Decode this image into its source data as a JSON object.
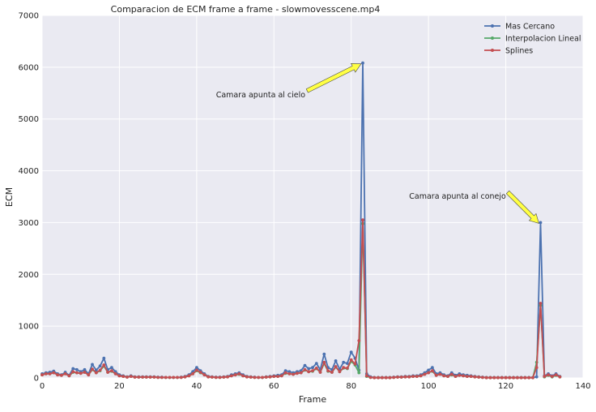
{
  "chart_data": {
    "type": "line",
    "title": "Comparacion de ECM frame a frame - slowmovesscene.mp4",
    "xlabel": "Frame",
    "ylabel": "ECM",
    "xlim": [
      0,
      140
    ],
    "ylim": [
      0,
      7000
    ],
    "x_ticks": [
      "0",
      "20",
      "40",
      "60",
      "80",
      "100",
      "120",
      "140"
    ],
    "y_ticks": [
      "0",
      "1000",
      "2000",
      "3000",
      "4000",
      "5000",
      "6000",
      "7000"
    ],
    "grid": true,
    "legend_position": "top-right",
    "background": "#eaeaf2",
    "series": [
      {
        "name": "Mas Cercano",
        "color": "#4c72b0",
        "x": [
          0,
          1,
          2,
          3,
          4,
          5,
          6,
          7,
          8,
          9,
          10,
          11,
          12,
          13,
          14,
          15,
          16,
          17,
          18,
          19,
          20,
          21,
          22,
          23,
          24,
          25,
          26,
          27,
          28,
          29,
          30,
          31,
          32,
          33,
          34,
          35,
          36,
          37,
          38,
          39,
          40,
          41,
          42,
          43,
          44,
          45,
          46,
          47,
          48,
          49,
          50,
          51,
          52,
          53,
          54,
          55,
          56,
          57,
          58,
          59,
          60,
          61,
          62,
          63,
          64,
          65,
          66,
          67,
          68,
          69,
          70,
          71,
          72,
          73,
          74,
          75,
          76,
          77,
          78,
          79,
          80,
          81,
          82,
          83,
          84,
          85,
          86,
          87,
          88,
          89,
          90,
          91,
          92,
          93,
          94,
          95,
          96,
          97,
          98,
          99,
          100,
          101,
          102,
          103,
          104,
          105,
          106,
          107,
          108,
          109,
          110,
          111,
          112,
          113,
          114,
          115,
          116,
          117,
          118,
          119,
          120,
          121,
          122,
          123,
          124,
          125,
          126,
          127,
          128,
          129,
          130,
          131,
          132,
          133,
          134
        ],
        "y": [
          80,
          100,
          110,
          130,
          80,
          60,
          110,
          50,
          180,
          160,
          120,
          160,
          80,
          260,
          150,
          230,
          380,
          160,
          200,
          120,
          60,
          40,
          20,
          40,
          20,
          20,
          20,
          20,
          20,
          20,
          15,
          15,
          10,
          10,
          10,
          10,
          15,
          30,
          60,
          120,
          200,
          140,
          80,
          30,
          20,
          15,
          15,
          20,
          30,
          60,
          80,
          100,
          60,
          30,
          20,
          15,
          10,
          10,
          20,
          30,
          40,
          50,
          60,
          140,
          120,
          100,
          120,
          140,
          240,
          180,
          200,
          280,
          160,
          460,
          200,
          160,
          330,
          170,
          300,
          280,
          500,
          380,
          150,
          6080,
          80,
          20,
          10,
          10,
          10,
          10,
          10,
          15,
          20,
          20,
          30,
          30,
          40,
          40,
          60,
          100,
          150,
          200,
          80,
          100,
          60,
          40,
          100,
          50,
          80,
          60,
          50,
          40,
          30,
          20,
          15,
          10,
          10,
          10,
          10,
          10,
          10,
          10,
          10,
          10,
          10,
          10,
          10,
          10,
          20,
          3000,
          40,
          80,
          40,
          80,
          30
        ]
      },
      {
        "name": "Interpolacion Lineal",
        "color": "#55a868",
        "x": [
          0,
          1,
          2,
          3,
          4,
          5,
          6,
          7,
          8,
          9,
          10,
          11,
          12,
          13,
          14,
          15,
          16,
          17,
          18,
          19,
          20,
          21,
          22,
          23,
          24,
          25,
          26,
          27,
          28,
          29,
          30,
          31,
          32,
          33,
          34,
          35,
          36,
          37,
          38,
          39,
          40,
          41,
          42,
          43,
          44,
          45,
          46,
          47,
          48,
          49,
          50,
          51,
          52,
          53,
          54,
          55,
          56,
          57,
          58,
          59,
          60,
          61,
          62,
          63,
          64,
          65,
          66,
          67,
          68,
          69,
          70,
          71,
          72,
          73,
          74,
          75,
          76,
          77,
          78,
          79,
          80,
          81,
          82,
          83,
          84,
          85,
          86,
          87,
          88,
          89,
          90,
          91,
          92,
          93,
          94,
          95,
          96,
          97,
          98,
          99,
          100,
          101,
          102,
          103,
          104,
          105,
          106,
          107,
          108,
          109,
          110,
          111,
          112,
          113,
          114,
          115,
          116,
          117,
          118,
          119,
          120,
          121,
          122,
          123,
          124,
          125,
          126,
          127,
          128,
          129,
          130,
          131,
          132,
          133,
          134
        ],
        "y": [
          60,
          80,
          80,
          100,
          60,
          50,
          80,
          40,
          110,
          100,
          90,
          110,
          60,
          160,
          100,
          140,
          230,
          110,
          130,
          80,
          40,
          30,
          15,
          30,
          15,
          15,
          15,
          15,
          15,
          15,
          10,
          10,
          10,
          10,
          10,
          10,
          10,
          20,
          40,
          80,
          140,
          100,
          60,
          20,
          15,
          10,
          10,
          15,
          20,
          40,
          60,
          70,
          40,
          20,
          15,
          10,
          10,
          10,
          15,
          20,
          30,
          30,
          40,
          90,
          80,
          70,
          90,
          100,
          150,
          120,
          130,
          180,
          110,
          280,
          130,
          110,
          210,
          120,
          190,
          180,
          320,
          250,
          100,
          2980,
          30,
          10,
          5,
          5,
          5,
          5,
          5,
          10,
          15,
          15,
          20,
          20,
          30,
          30,
          40,
          70,
          100,
          130,
          50,
          70,
          40,
          30,
          60,
          30,
          50,
          40,
          30,
          30,
          20,
          15,
          10,
          5,
          5,
          5,
          5,
          5,
          5,
          5,
          5,
          5,
          5,
          5,
          5,
          5,
          300,
          1400,
          20,
          50,
          20,
          50,
          20
        ]
      },
      {
        "name": "Splines",
        "color": "#c44e52",
        "x": [
          0,
          1,
          2,
          3,
          4,
          5,
          6,
          7,
          8,
          9,
          10,
          11,
          12,
          13,
          14,
          15,
          16,
          17,
          18,
          19,
          20,
          21,
          22,
          23,
          24,
          25,
          26,
          27,
          28,
          29,
          30,
          31,
          32,
          33,
          34,
          35,
          36,
          37,
          38,
          39,
          40,
          41,
          42,
          43,
          44,
          45,
          46,
          47,
          48,
          49,
          50,
          51,
          52,
          53,
          54,
          55,
          56,
          57,
          58,
          59,
          60,
          61,
          62,
          63,
          64,
          65,
          66,
          67,
          68,
          69,
          70,
          71,
          72,
          73,
          74,
          75,
          76,
          77,
          78,
          79,
          80,
          81,
          82,
          83,
          84,
          85,
          86,
          87,
          88,
          89,
          90,
          91,
          92,
          93,
          94,
          95,
          96,
          97,
          98,
          99,
          100,
          101,
          102,
          103,
          104,
          105,
          106,
          107,
          108,
          109,
          110,
          111,
          112,
          113,
          114,
          115,
          116,
          117,
          118,
          119,
          120,
          121,
          122,
          123,
          124,
          125,
          126,
          127,
          128,
          129,
          130,
          131,
          132,
          133,
          134
        ],
        "y": [
          60,
          80,
          80,
          100,
          60,
          50,
          80,
          40,
          120,
          100,
          90,
          110,
          60,
          170,
          100,
          150,
          250,
          110,
          140,
          80,
          40,
          30,
          15,
          30,
          15,
          15,
          15,
          15,
          15,
          15,
          10,
          10,
          10,
          10,
          10,
          10,
          10,
          20,
          40,
          80,
          150,
          110,
          60,
          20,
          15,
          10,
          10,
          15,
          20,
          40,
          60,
          80,
          40,
          20,
          15,
          10,
          10,
          10,
          15,
          20,
          30,
          30,
          40,
          100,
          80,
          70,
          90,
          100,
          160,
          120,
          140,
          190,
          110,
          300,
          140,
          110,
          220,
          120,
          200,
          190,
          350,
          270,
          720,
          3050,
          40,
          10,
          5,
          5,
          5,
          5,
          5,
          10,
          15,
          15,
          20,
          20,
          30,
          30,
          40,
          70,
          100,
          140,
          50,
          70,
          40,
          30,
          70,
          30,
          50,
          40,
          30,
          30,
          20,
          15,
          10,
          5,
          5,
          5,
          5,
          5,
          5,
          5,
          5,
          5,
          5,
          5,
          5,
          5,
          200,
          1440,
          30,
          60,
          30,
          60,
          20
        ]
      }
    ],
    "annotations": [
      {
        "text": "Camara apunta al cielo",
        "target_x": 83,
        "target_y": 6080,
        "text_x": 45,
        "text_y": 5420
      },
      {
        "text": "Camara apunta al conejo",
        "target_x": 129,
        "target_y": 3000,
        "text_x": 95,
        "text_y": 3460
      }
    ],
    "arrow_color": "#ffff44"
  }
}
